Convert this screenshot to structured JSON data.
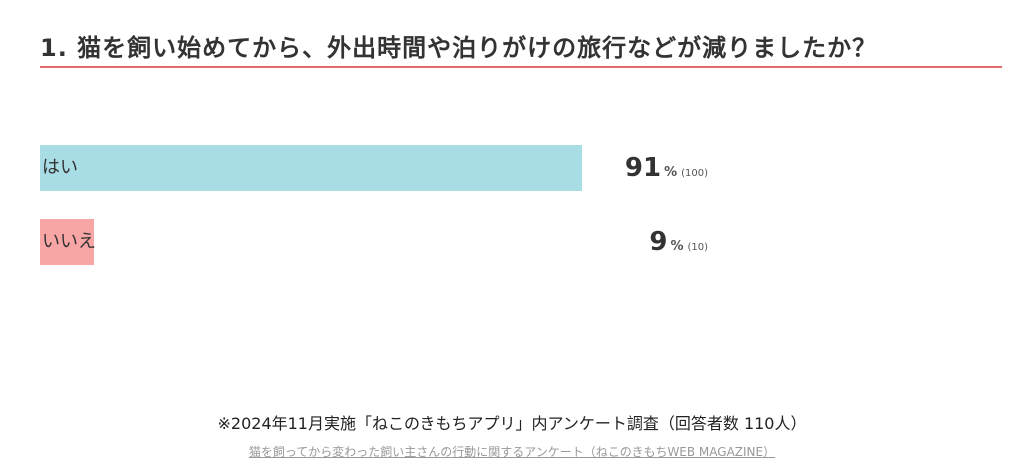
{
  "title": "1. 猫を飼い始めてから、外出時間や泊りがけの旅行などが減りましたか？",
  "colors": {
    "rule": "#e66a6a",
    "yes_bar": "#a9dde6",
    "no_bar": "#f7a5a5",
    "text": "#333333"
  },
  "chart_data": {
    "type": "bar",
    "orientation": "horizontal",
    "categories": [
      "はい",
      "いいえ"
    ],
    "series": [
      {
        "values": [
          91,
          9
        ],
        "counts": [
          100,
          10
        ]
      }
    ],
    "value_unit": "%",
    "xlim": [
      0,
      100
    ],
    "grid": false,
    "legend": "none",
    "bars": [
      {
        "label": "はい",
        "percent": 91,
        "percent_text": "91",
        "percent_sign": "%",
        "count_text": "(100)"
      },
      {
        "label": "いいえ",
        "percent": 9,
        "percent_text": "9",
        "percent_sign": "%",
        "count_text": "(10)"
      }
    ]
  },
  "footer": {
    "note": "※2024年11月実施「ねこのきもちアプリ」内アンケート調査（回答者数 110人）",
    "link": "猫を飼ってから変わった飼い主さんの行動に関するアンケート（ねこのきもちWEB MAGAZINE）"
  }
}
